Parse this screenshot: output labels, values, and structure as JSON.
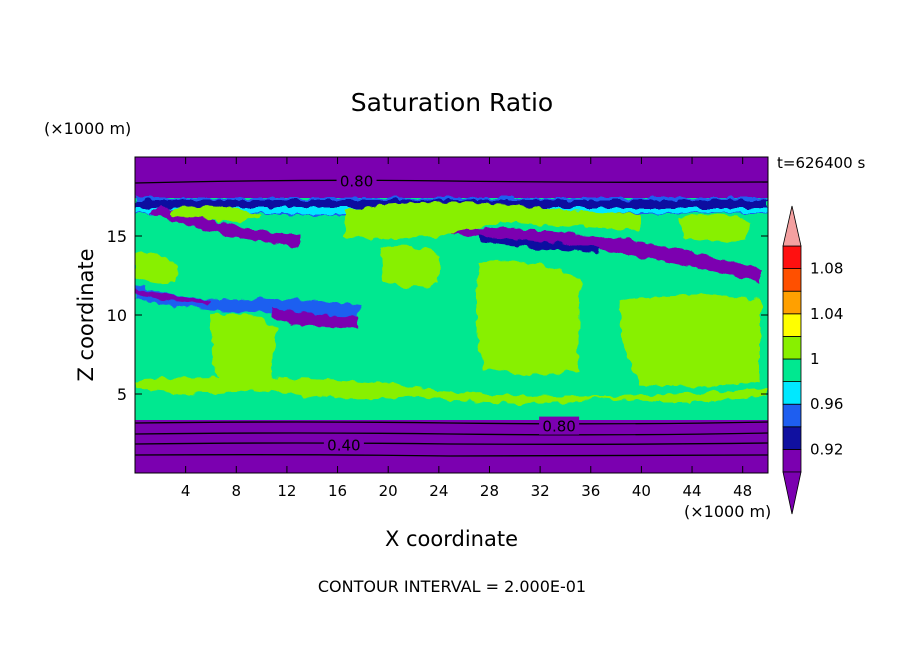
{
  "chart_data": {
    "type": "heatmap",
    "title": "Saturation Ratio",
    "xlabel": "X coordinate",
    "ylabel": "Z coordinate",
    "x_unit": "(×1000 m)",
    "z_unit": "(×1000 m)",
    "time_label": "t=626400 s",
    "footer": "CONTOUR INTERVAL = 2.000E-01",
    "xlim": [
      0,
      50
    ],
    "ylim": [
      0,
      20
    ],
    "x_ticks": [
      4,
      8,
      12,
      16,
      20,
      24,
      28,
      32,
      36,
      40,
      44,
      48
    ],
    "y_ticks": [
      5,
      10,
      15
    ],
    "contour_labels": [
      {
        "text": "0.80",
        "x": 17.5,
        "z": 18.5
      },
      {
        "text": "0.80",
        "x": 33.5,
        "z": 3.0
      },
      {
        "text": "0.40",
        "x": 16.5,
        "z": 1.8
      }
    ],
    "colorbar": {
      "levels": [
        0.9,
        0.92,
        0.94,
        0.96,
        0.98,
        1.0,
        1.02,
        1.04,
        1.06,
        1.08,
        1.1
      ],
      "tick_labels": [
        "0.92",
        "0.96",
        "1",
        "1.04",
        "1.08"
      ],
      "tick_values": [
        0.92,
        0.96,
        1.0,
        1.04,
        1.08
      ],
      "colors": [
        "#7b00b0",
        "#1010a0",
        "#1e5ef0",
        "#00e8ff",
        "#00e890",
        "#88f000",
        "#ffff00",
        "#ffa000",
        "#ff5000",
        "#ff1010"
      ],
      "under_color": "#7b00b0",
      "over_color": "#f4a0a0"
    }
  }
}
